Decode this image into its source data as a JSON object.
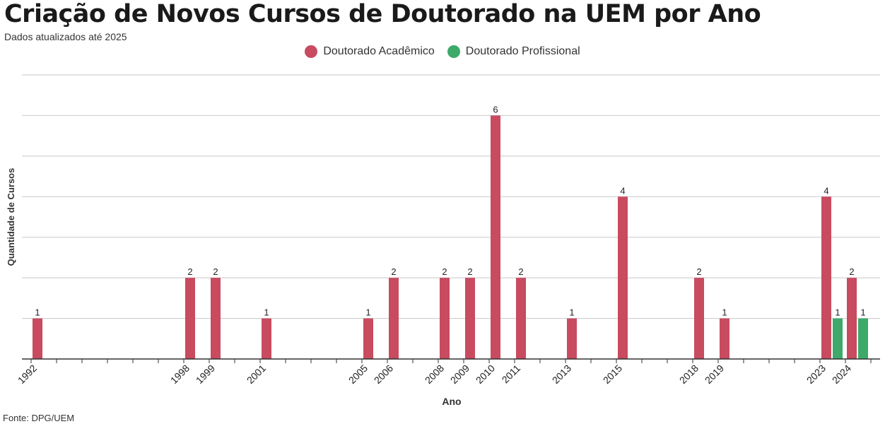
{
  "title": "Criação de Novos Cursos de Doutorado na UEM por Ano",
  "subtitle": "Dados atualizados até 2025",
  "source": "Fonte: DPG/UEM",
  "colors": {
    "academico": "#C84B60",
    "profissional": "#3DAA6A",
    "grid": "#c8c8c8",
    "axis": "#333333"
  },
  "chart_data": {
    "type": "bar",
    "xlabel": "Ano",
    "ylabel": "Quantidade de Cursos",
    "ylim": [
      0,
      7
    ],
    "grid": true,
    "legend_position": "top-center",
    "x_range": [
      1992,
      2025
    ],
    "labeled_years": [
      1992,
      1998,
      1999,
      2001,
      2005,
      2006,
      2008,
      2009,
      2010,
      2011,
      2013,
      2015,
      2018,
      2019,
      2023,
      2024
    ],
    "series": [
      {
        "name": "Doutorado Acadêmico",
        "color_key": "academico",
        "points": [
          {
            "year": 1992,
            "value": 1
          },
          {
            "year": 1998,
            "value": 2
          },
          {
            "year": 1999,
            "value": 2
          },
          {
            "year": 2001,
            "value": 1
          },
          {
            "year": 2005,
            "value": 1
          },
          {
            "year": 2006,
            "value": 2
          },
          {
            "year": 2008,
            "value": 2
          },
          {
            "year": 2009,
            "value": 2
          },
          {
            "year": 2010,
            "value": 6
          },
          {
            "year": 2011,
            "value": 2
          },
          {
            "year": 2013,
            "value": 1
          },
          {
            "year": 2015,
            "value": 4
          },
          {
            "year": 2018,
            "value": 2
          },
          {
            "year": 2019,
            "value": 1
          },
          {
            "year": 2023,
            "value": 4
          },
          {
            "year": 2024,
            "value": 2
          }
        ]
      },
      {
        "name": "Doutorado Profissional",
        "color_key": "profissional",
        "points": [
          {
            "year": 2023,
            "value": 1
          },
          {
            "year": 2024,
            "value": 1
          }
        ]
      }
    ]
  }
}
